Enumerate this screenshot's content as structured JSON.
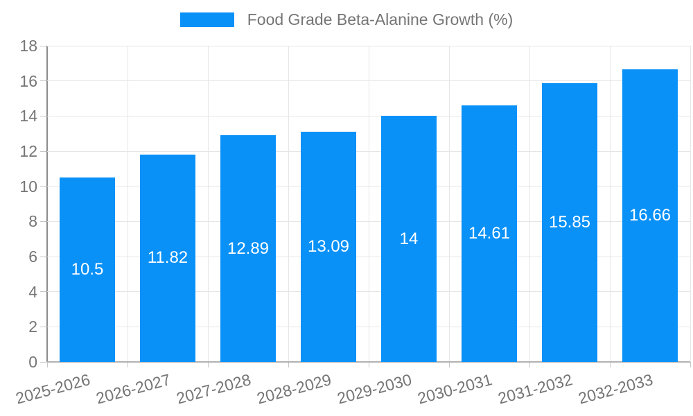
{
  "background": "#ffffff",
  "legend": {
    "position": "top",
    "swatch_color": "#0991f8",
    "label": "Food Grade Beta-Alanine Growth (%)"
  },
  "chart_data": {
    "type": "bar",
    "title": "Food Grade Beta-Alanine Growth (%)",
    "categories": [
      "2025-2026",
      "2026-2027",
      "2027-2028",
      "2028-2029",
      "2029-2030",
      "2030-2031",
      "2031-2032",
      "2032-2033"
    ],
    "values": [
      10.5,
      11.82,
      12.89,
      13.09,
      14,
      14.61,
      15.85,
      16.66
    ],
    "value_labels": [
      "10.5",
      "11.82",
      "12.89",
      "13.09",
      "14",
      "14.61",
      "15.85",
      "16.66"
    ],
    "xlabel": "",
    "ylabel": "",
    "ylim": [
      0,
      18
    ],
    "yticks": [
      0,
      2,
      4,
      6,
      8,
      10,
      12,
      14,
      16,
      18
    ],
    "grid": true,
    "legend_position": "top",
    "x_label_rotation_deg": -15,
    "bar_color": "#0991f8",
    "bar_value_label_color": "#ffffff",
    "axis_text_color": "#757575",
    "grid_color": "#e6e6e6",
    "y_axis_line_color": "#8c8c8c",
    "x_axis_line_color": "#b2b2b2"
  }
}
